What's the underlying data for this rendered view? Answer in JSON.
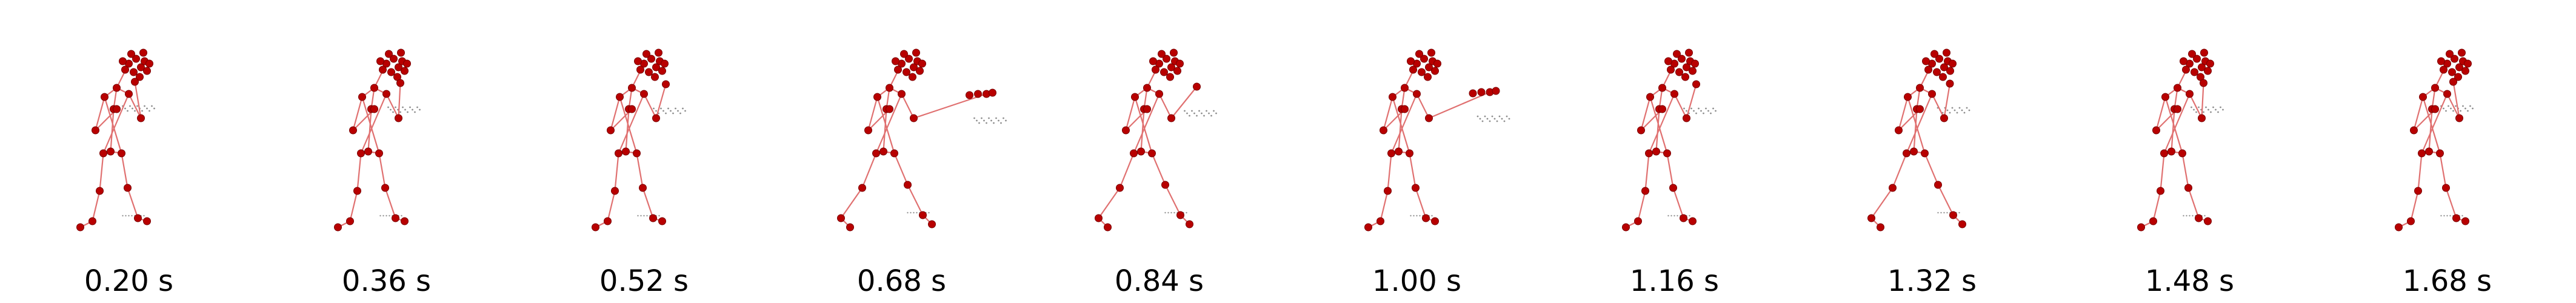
{
  "frames": [
    {
      "label": "0.20 s",
      "pose": "guard",
      "punch": 0.0
    },
    {
      "label": "0.36 s",
      "pose": "guard",
      "punch": 0.1
    },
    {
      "label": "0.52 s",
      "pose": "guard",
      "punch": 0.2
    },
    {
      "label": "0.68 s",
      "pose": "lunge",
      "punch": 1.0
    },
    {
      "label": "0.84 s",
      "pose": "lunge",
      "punch": 0.4
    },
    {
      "label": "1.00 s",
      "pose": "guard",
      "punch": 0.85
    },
    {
      "label": "1.16 s",
      "pose": "guard",
      "punch": 0.2
    },
    {
      "label": "1.32 s",
      "pose": "lunge",
      "punch": 0.15
    },
    {
      "label": "1.48 s",
      "pose": "guard",
      "punch": 0.1
    },
    {
      "label": "1.68 s",
      "pose": "guard",
      "punch": 0.0
    }
  ],
  "colors": {
    "joint": "#b80000",
    "joint_edge": "#7a0000",
    "bone": "#e07070",
    "trail": "#444444",
    "caption": "#000000"
  }
}
